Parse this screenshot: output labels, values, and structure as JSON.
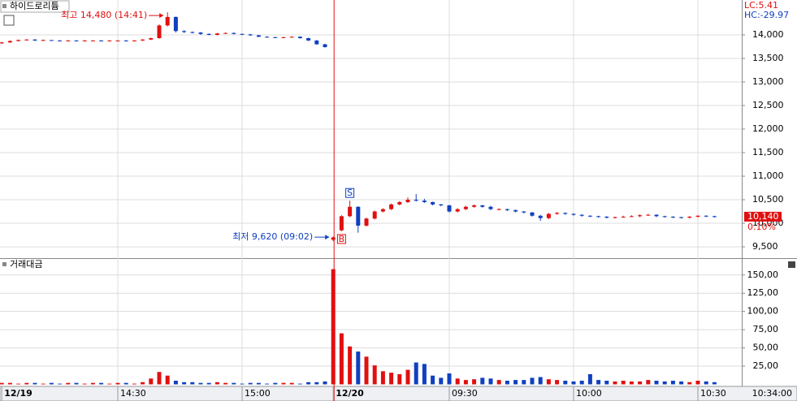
{
  "chart_data": {
    "type": "candlestick",
    "title": "하이드로리튬",
    "volume_title": "거래대금",
    "categories": [
      "12/19",
      null,
      null,
      null,
      null,
      null,
      null,
      null,
      null,
      null,
      null,
      null,
      null,
      null,
      "14:30",
      null,
      null,
      null,
      null,
      null,
      null,
      null,
      null,
      null,
      null,
      null,
      null,
      null,
      null,
      "15:00",
      null,
      null,
      null,
      null,
      null,
      null,
      null,
      null,
      null,
      null,
      "12/20",
      null,
      null,
      null,
      null,
      null,
      null,
      null,
      null,
      null,
      null,
      null,
      null,
      null,
      "09:30",
      null,
      null,
      null,
      null,
      null,
      null,
      null,
      null,
      null,
      null,
      null,
      null,
      null,
      null,
      "10:00",
      null,
      null,
      null,
      null,
      null,
      null,
      null,
      null,
      null,
      null,
      null,
      null,
      null,
      null,
      "10:30",
      null,
      null
    ],
    "open": [
      13820,
      13840,
      13870,
      13890,
      13900,
      13880,
      13890,
      13880,
      13870,
      13880,
      13870,
      13880,
      13880,
      13870,
      13880,
      13880,
      13870,
      13880,
      13900,
      13930,
      14200,
      14380,
      14080,
      14060,
      14050,
      14020,
      14000,
      14030,
      14040,
      14020,
      14010,
      13990,
      13960,
      13950,
      13940,
      13950,
      13960,
      13930,
      13880,
      13800,
      9650,
      9850,
      10150,
      10350,
      9950,
      10100,
      10250,
      10300,
      10400,
      10450,
      10500,
      10480,
      10450,
      10400,
      10380,
      10250,
      10300,
      10350,
      10380,
      10350,
      10300,
      10300,
      10280,
      10250,
      10230,
      10160,
      10110,
      10200,
      10220,
      10200,
      10180,
      10160,
      10150,
      10140,
      10120,
      10130,
      10140,
      10150,
      10170,
      10180,
      10150,
      10140,
      10130,
      10120,
      10140,
      10160,
      10150
    ],
    "high": [
      13850,
      13880,
      13900,
      13910,
      13910,
      13900,
      13890,
      13890,
      13890,
      13890,
      13890,
      13890,
      13890,
      13890,
      13890,
      13890,
      13890,
      13910,
      13940,
      14220,
      14480,
      14390,
      14100,
      14070,
      14060,
      14030,
      14040,
      14050,
      14050,
      14030,
      14020,
      14000,
      13970,
      13960,
      13960,
      13970,
      13970,
      13940,
      13890,
      13810,
      9720,
      10170,
      10480,
      10360,
      10120,
      10270,
      10320,
      10420,
      10470,
      10550,
      10620,
      10520,
      10460,
      10410,
      10390,
      10320,
      10370,
      10400,
      10390,
      10370,
      10320,
      10310,
      10290,
      10260,
      10240,
      10180,
      10220,
      10240,
      10230,
      10210,
      10190,
      10170,
      10160,
      10150,
      10140,
      10160,
      10170,
      10190,
      10200,
      10190,
      10160,
      10150,
      10140,
      10150,
      10170,
      10170,
      10160
    ],
    "low": [
      13810,
      13830,
      13860,
      13880,
      13870,
      13870,
      13870,
      13860,
      13860,
      13860,
      13860,
      13870,
      13860,
      13860,
      13870,
      13860,
      13860,
      13870,
      13890,
      13920,
      14180,
      14050,
      14040,
      14030,
      14000,
      13990,
      13990,
      14020,
      14010,
      14000,
      13980,
      13950,
      13940,
      13930,
      13930,
      13940,
      13920,
      13870,
      13790,
      13730,
      9620,
      9830,
      10130,
      9800,
      9930,
      10080,
      10230,
      10280,
      10380,
      10430,
      10460,
      10430,
      10380,
      10360,
      10230,
      10230,
      10280,
      10330,
      10330,
      10280,
      10280,
      10260,
      10230,
      10210,
      10140,
      10050,
      10090,
      10180,
      10180,
      10160,
      10140,
      10130,
      10120,
      10100,
      10100,
      10120,
      10130,
      10130,
      10160,
      10130,
      10120,
      10110,
      10100,
      10100,
      10120,
      10130,
      10120
    ],
    "close": [
      13840,
      13870,
      13890,
      13900,
      13880,
      13890,
      13880,
      13870,
      13880,
      13870,
      13880,
      13880,
      13870,
      13880,
      13880,
      13870,
      13880,
      13900,
      13930,
      14200,
      14380,
      14080,
      14060,
      14050,
      14020,
      14000,
      14030,
      14040,
      14020,
      14010,
      13990,
      13960,
      13950,
      13940,
      13950,
      13960,
      13930,
      13880,
      13800,
      13740,
      9700,
      10150,
      10350,
      9950,
      10100,
      10250,
      10300,
      10400,
      10450,
      10500,
      10480,
      10450,
      10400,
      10380,
      10250,
      10300,
      10350,
      10380,
      10350,
      10300,
      10300,
      10280,
      10250,
      10230,
      10160,
      10110,
      10200,
      10220,
      10200,
      10180,
      10160,
      10150,
      10140,
      10120,
      10130,
      10140,
      10150,
      10170,
      10180,
      10150,
      10140,
      10130,
      10120,
      10140,
      10160,
      10150,
      10140
    ],
    "volume": [
      2,
      2,
      1,
      2,
      2,
      1,
      2,
      1,
      2,
      2,
      1,
      2,
      2,
      1,
      2,
      2,
      1,
      3,
      8,
      17,
      12,
      5,
      3,
      3,
      2,
      2,
      3,
      2,
      2,
      1,
      2,
      2,
      1,
      2,
      2,
      2,
      1,
      3,
      3,
      4,
      158,
      70,
      52,
      45,
      38,
      26,
      18,
      16,
      14,
      20,
      30,
      28,
      12,
      9,
      15,
      8,
      6,
      7,
      9,
      8,
      6,
      5,
      6,
      6,
      9,
      10,
      7,
      6,
      5,
      4,
      5,
      14,
      6,
      5,
      4,
      5,
      4,
      4,
      6,
      5,
      4,
      5,
      4,
      3,
      5,
      4,
      3
    ],
    "up_color": "#e01010",
    "down_color": "#1040c0",
    "ylim": [
      9260,
      14740
    ],
    "yticks": [
      {
        "value": 9500,
        "label": "9,500"
      },
      {
        "value": 10000,
        "label": "10,000"
      },
      {
        "value": 10500,
        "label": "10,500"
      },
      {
        "value": 11000,
        "label": "11,000"
      },
      {
        "value": 11500,
        "label": "11,500"
      },
      {
        "value": 12000,
        "label": "12,000"
      },
      {
        "value": 12500,
        "label": "12,500"
      },
      {
        "value": 13000,
        "label": "13,000"
      },
      {
        "value": 13500,
        "label": "13,500"
      },
      {
        "value": 14000,
        "label": "14,000"
      }
    ],
    "volume_ylim": [
      0,
      172
    ],
    "volume_yticks": [
      {
        "value": 25,
        "label": "25,00"
      },
      {
        "value": 50,
        "label": "50,00"
      },
      {
        "value": 75,
        "label": "75,00"
      },
      {
        "value": 100,
        "label": "100,00"
      },
      {
        "value": 125,
        "label": "125,00"
      },
      {
        "value": 150,
        "label": "150,00"
      }
    ],
    "grid": true,
    "high_label": "최고 14,480 (14:41)",
    "low_label": "최저 9,620 (09:02)",
    "buy_label": "B",
    "sell_label": "S",
    "lc_label": "LC:5.41",
    "hc_label": "HC:-29.97",
    "last_price": {
      "value": 10140,
      "label": "10,140"
    },
    "change_label": "0.10%",
    "cursor_time": "10:34:00"
  }
}
